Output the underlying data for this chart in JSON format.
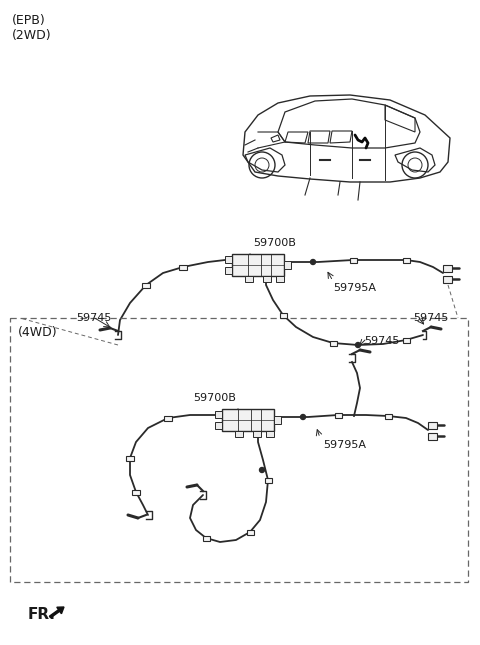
{
  "bg_color": "#ffffff",
  "line_color": "#2a2a2a",
  "label_color": "#1a1a1a",
  "dashed_box_color": "#666666",
  "labels": {
    "epb_2wd": "(EPB)\n(2WD)",
    "4wd": "(4WD)",
    "part_59745_1": "59745",
    "part_59700B_1": "59700B",
    "part_59795A_1": "59795A",
    "part_59745_2": "59745",
    "part_59700B_2": "59700B",
    "part_59795A_2": "59795A",
    "fr_label": "FR."
  },
  "font_size_labels": 8,
  "font_size_corner": 9,
  "figsize": [
    4.8,
    6.45
  ],
  "dpi": 100
}
